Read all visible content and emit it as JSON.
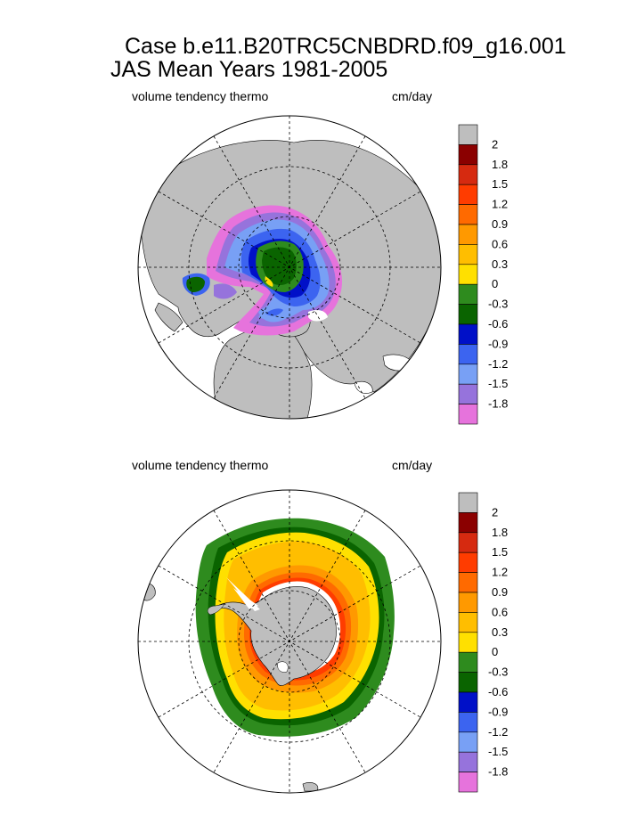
{
  "title_line1": "Case b.e11.B20TRC5CNBDRD.f09_g16.001",
  "title_line2": "JAS Mean   Years 1981-2005",
  "panels": [
    {
      "left_label": "volume tendency thermo",
      "right_label": "cm/day"
    },
    {
      "left_label": "volume tendency thermo",
      "right_label": "cm/day"
    }
  ],
  "colorbar": {
    "labels": [
      "2",
      "1.8",
      "1.5",
      "1.2",
      "0.9",
      "0.6",
      "0.3",
      "0",
      "-0.3",
      "-0.6",
      "-0.9",
      "-1.2",
      "-1.5",
      "-1.8"
    ],
    "colors": [
      "#bebebe",
      "#8b0000",
      "#d62a10",
      "#ff3c00",
      "#ff6a00",
      "#ff9900",
      "#ffbe00",
      "#ffe000",
      "#2e8b1e",
      "#0a6400",
      "#0010c8",
      "#3c64f0",
      "#78a0f5",
      "#9673dc",
      "#e673dc"
    ]
  },
  "colors": {
    "land": "#bebebe",
    "ocean": "#ffffff"
  }
}
